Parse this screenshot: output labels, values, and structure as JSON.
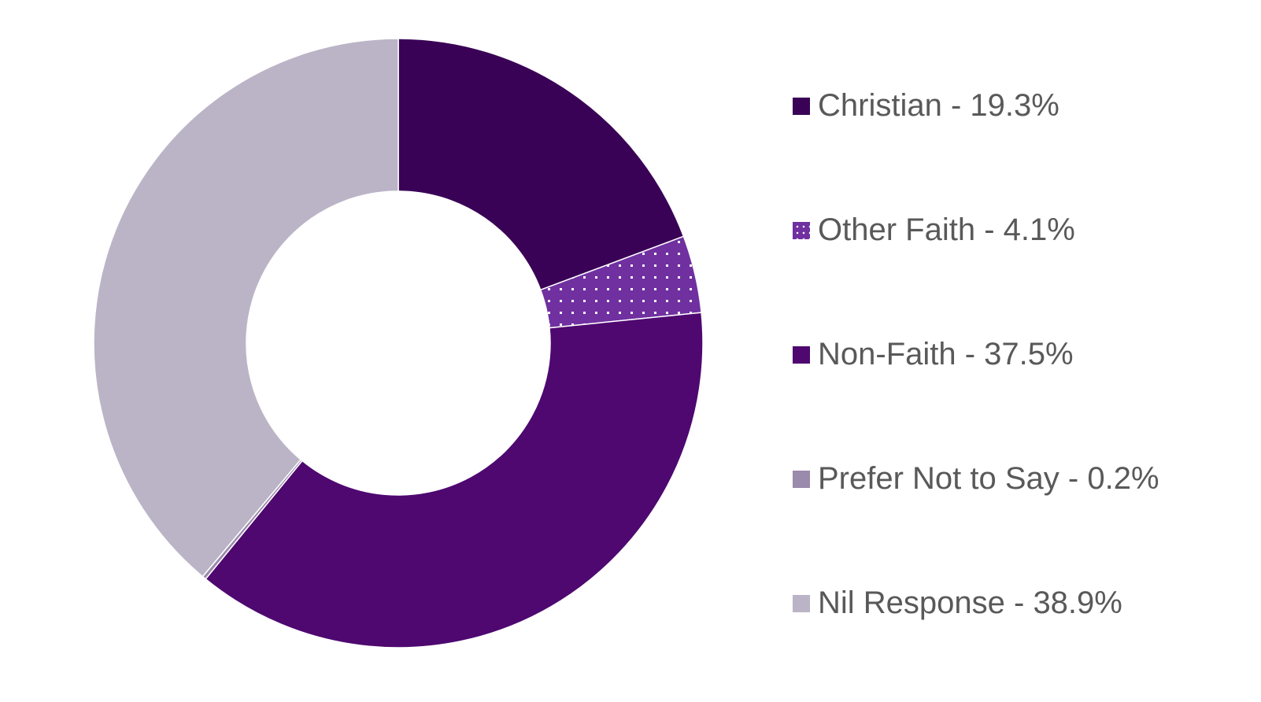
{
  "chart_data": {
    "type": "pie",
    "subtype": "donut",
    "title": "",
    "legend_position": "right",
    "slices": [
      {
        "label": "Christian - 19.3%",
        "name": "Christian",
        "value": 19.3,
        "color": "#3a0256",
        "pattern": "solid"
      },
      {
        "label": "Other Faith - 4.1%",
        "name": "Other Faith",
        "value": 4.1,
        "color": "#7030a0",
        "pattern": "dotted"
      },
      {
        "label": "Non-Faith - 37.5%",
        "name": "Non-Faith",
        "value": 37.5,
        "color": "#4e0870",
        "pattern": "solid"
      },
      {
        "label": "Prefer Not to Say - 0.2%",
        "name": "Prefer Not to Say",
        "value": 0.2,
        "color": "#9a8aab",
        "pattern": "solid"
      },
      {
        "label": "Nil Response - 38.9%",
        "name": "Nil Response",
        "value": 38.9,
        "color": "#bbb4c6",
        "pattern": "solid"
      }
    ]
  }
}
